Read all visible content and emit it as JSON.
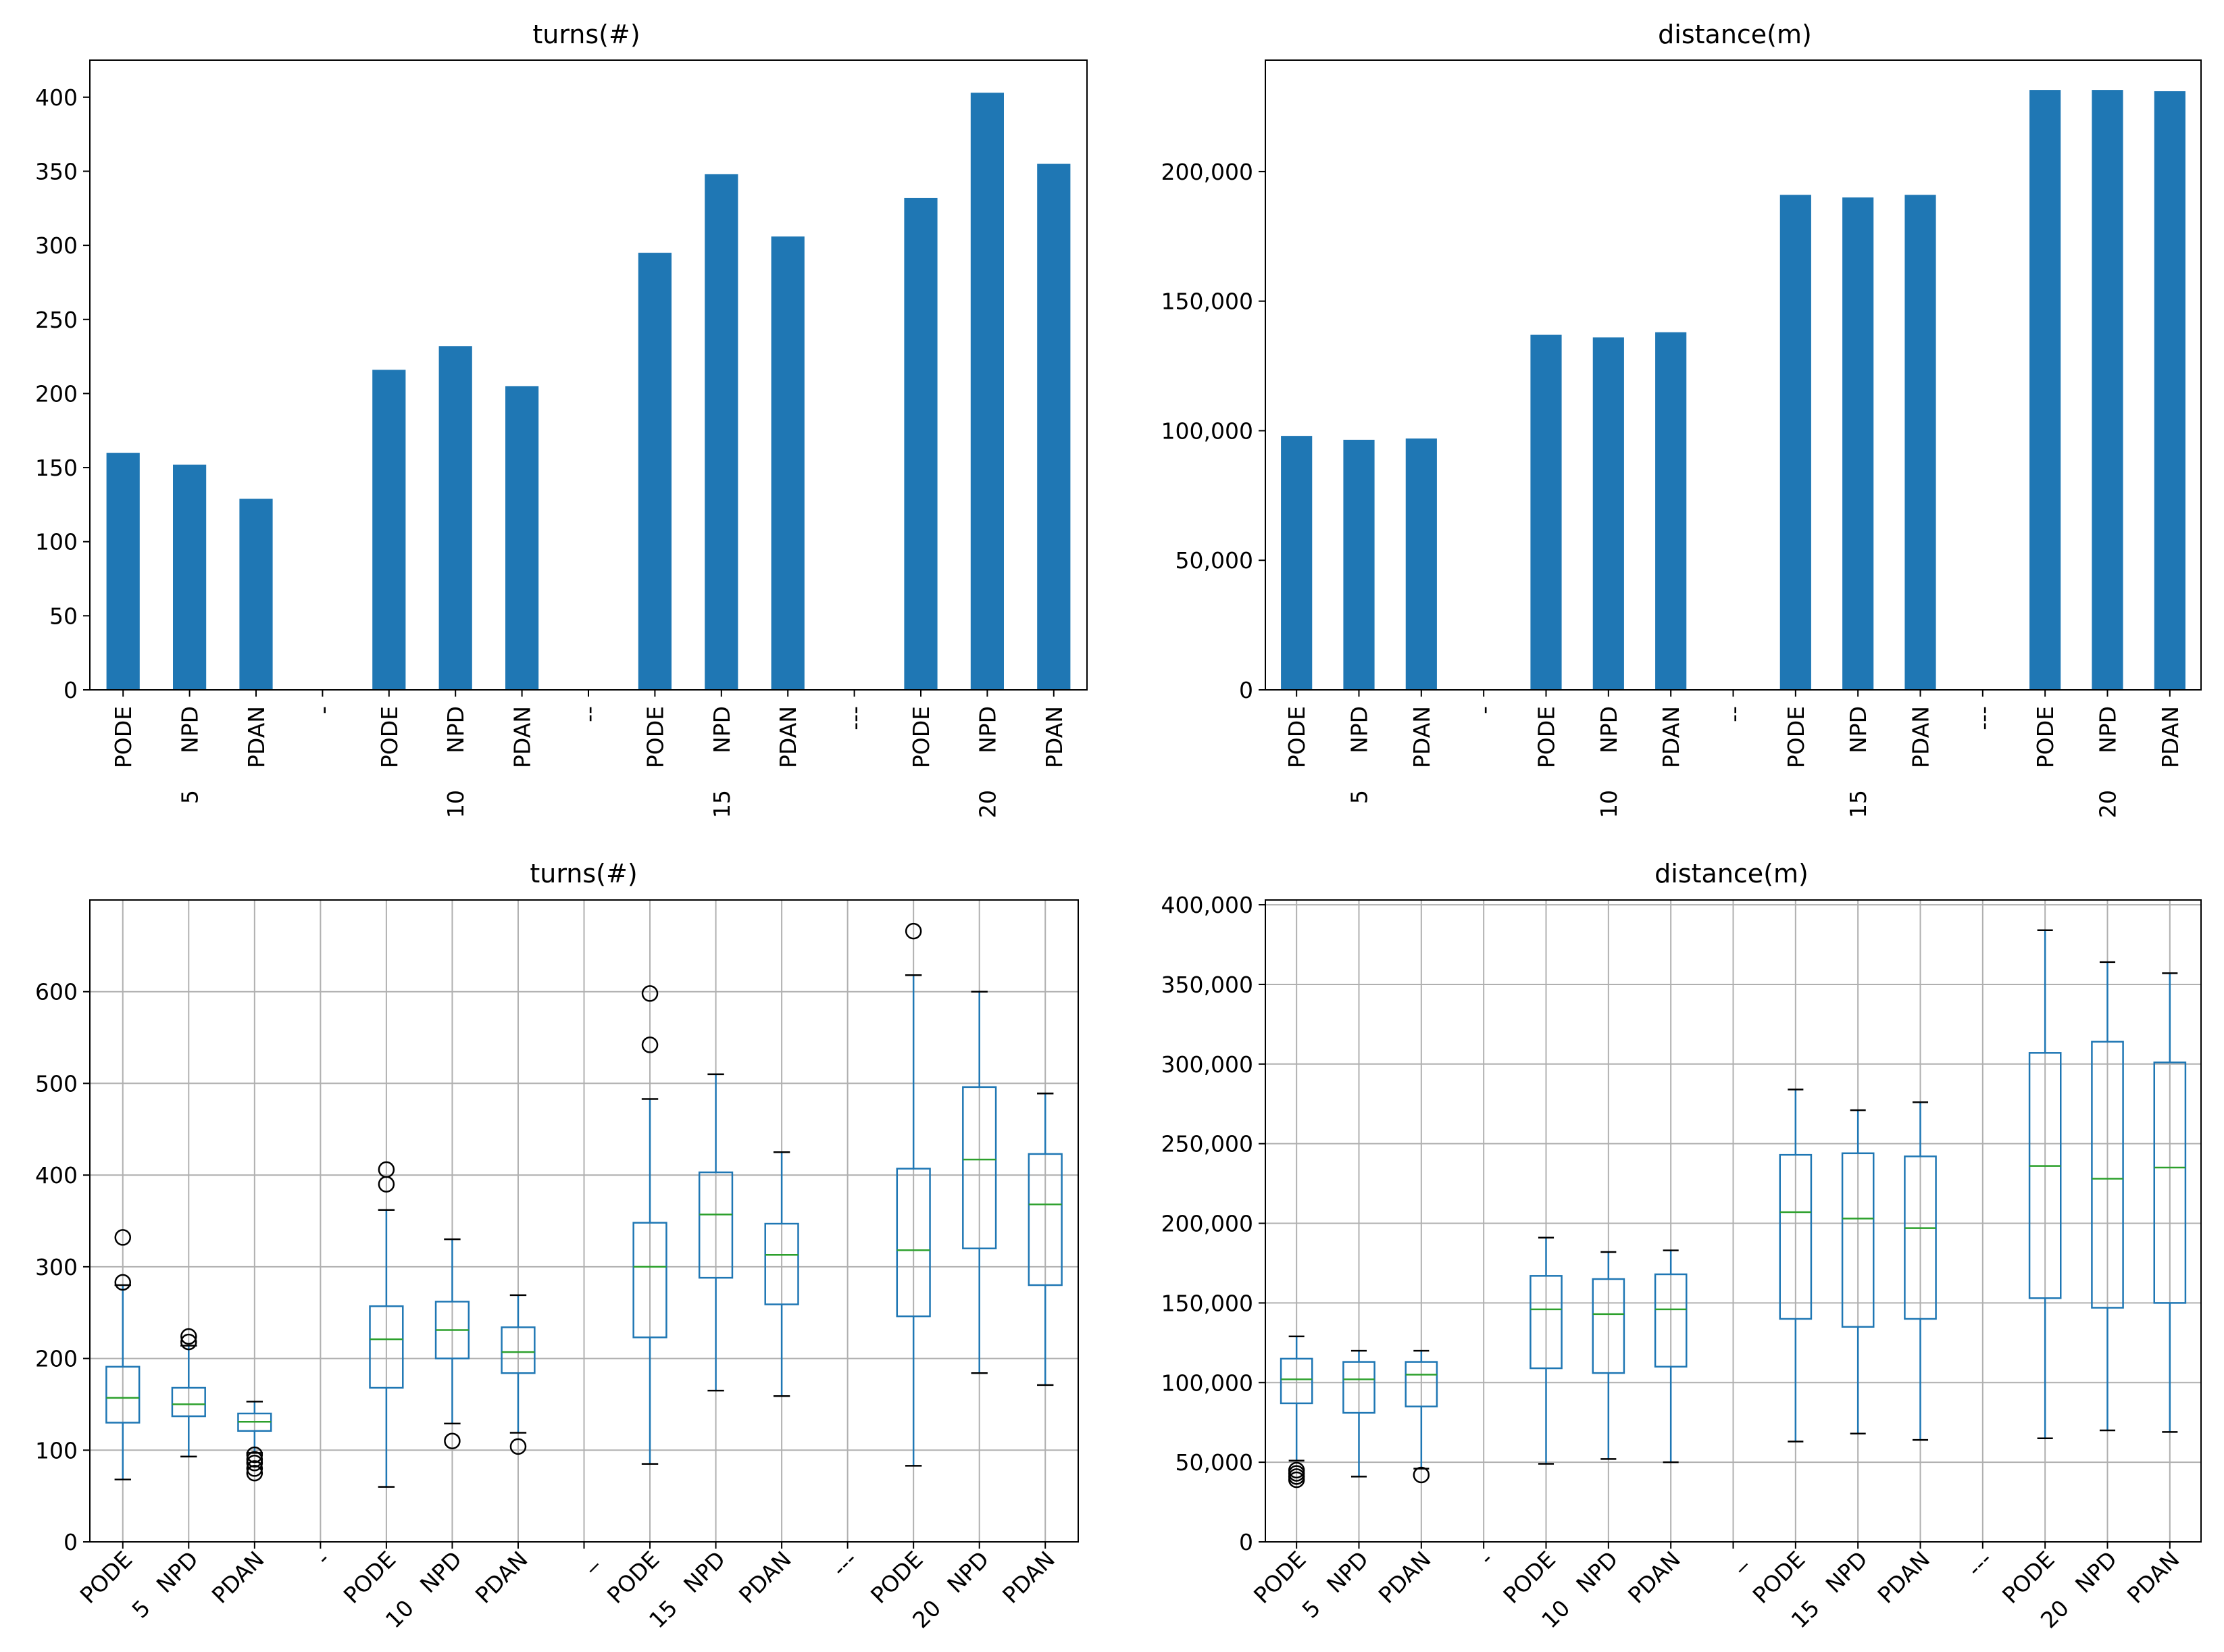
{
  "colors": {
    "bar": "#1f77b4",
    "box": "#1f77b4",
    "median": "#2ca02c",
    "grid": "#b0b0b0",
    "outlier": "#000000"
  },
  "chart_data": [
    {
      "type": "bar",
      "title": "turns(#)",
      "ylim": [
        0,
        425
      ],
      "yticks": [
        0,
        50,
        100,
        150,
        200,
        250,
        300,
        350,
        400
      ],
      "ytick_labels": [
        "0",
        "50",
        "100",
        "150",
        "200",
        "250",
        "300",
        "350",
        "400"
      ],
      "grid": false,
      "categories": [
        {
          "top": "PODE",
          "bottom": ""
        },
        {
          "top": "NPD",
          "bottom": "5"
        },
        {
          "top": "PDAN",
          "bottom": ""
        },
        {
          "top": "-",
          "bottom": ""
        },
        {
          "top": "PODE",
          "bottom": ""
        },
        {
          "top": "NPD",
          "bottom": "10"
        },
        {
          "top": "PDAN",
          "bottom": ""
        },
        {
          "top": "--",
          "bottom": ""
        },
        {
          "top": "PODE",
          "bottom": ""
        },
        {
          "top": "NPD",
          "bottom": "15"
        },
        {
          "top": "PDAN",
          "bottom": ""
        },
        {
          "top": "---",
          "bottom": ""
        },
        {
          "top": "PODE",
          "bottom": ""
        },
        {
          "top": "NPD",
          "bottom": "20"
        },
        {
          "top": "PDAN",
          "bottom": ""
        }
      ],
      "values": [
        160,
        152,
        129,
        0,
        216,
        232,
        205,
        0,
        295,
        348,
        306,
        0,
        332,
        403,
        355
      ]
    },
    {
      "type": "bar",
      "title": "distance(m)",
      "ylim": [
        0,
        243000
      ],
      "yticks": [
        0,
        50000,
        100000,
        150000,
        200000
      ],
      "ytick_labels": [
        "0",
        "50,000",
        "100,000",
        "150,000",
        "200,000"
      ],
      "grid": false,
      "categories": [
        {
          "top": "PODE",
          "bottom": ""
        },
        {
          "top": "NPD",
          "bottom": "5"
        },
        {
          "top": "PDAN",
          "bottom": ""
        },
        {
          "top": "-",
          "bottom": ""
        },
        {
          "top": "PODE",
          "bottom": ""
        },
        {
          "top": "NPD",
          "bottom": "10"
        },
        {
          "top": "PDAN",
          "bottom": ""
        },
        {
          "top": "--",
          "bottom": ""
        },
        {
          "top": "PODE",
          "bottom": ""
        },
        {
          "top": "NPD",
          "bottom": "15"
        },
        {
          "top": "PDAN",
          "bottom": ""
        },
        {
          "top": "---",
          "bottom": ""
        },
        {
          "top": "PODE",
          "bottom": ""
        },
        {
          "top": "NPD",
          "bottom": "20"
        },
        {
          "top": "PDAN",
          "bottom": ""
        }
      ],
      "values": [
        98000,
        96500,
        97000,
        0,
        137000,
        136000,
        138000,
        0,
        191000,
        190000,
        191000,
        0,
        231500,
        231500,
        231000
      ]
    },
    {
      "type": "box",
      "title": "turns(#)",
      "ylim": [
        0,
        700
      ],
      "yticks": [
        0,
        100,
        200,
        300,
        400,
        500,
        600
      ],
      "ytick_labels": [
        "0",
        "100",
        "200",
        "300",
        "400",
        "500",
        "600"
      ],
      "grid": true,
      "categories": [
        {
          "top": "PODE",
          "bottom": ""
        },
        {
          "top": "NPD",
          "bottom": "5"
        },
        {
          "top": "PDAN",
          "bottom": ""
        },
        {
          "top": "-",
          "bottom": ""
        },
        {
          "top": "PODE",
          "bottom": ""
        },
        {
          "top": "NPD",
          "bottom": "10"
        },
        {
          "top": "PDAN",
          "bottom": ""
        },
        {
          "top": "_",
          "bottom": ""
        },
        {
          "top": "PODE",
          "bottom": ""
        },
        {
          "top": "NPD",
          "bottom": "15"
        },
        {
          "top": "PDAN",
          "bottom": ""
        },
        {
          "top": "---",
          "bottom": ""
        },
        {
          "top": "PODE",
          "bottom": ""
        },
        {
          "top": "NPD",
          "bottom": "20"
        },
        {
          "top": "PDAN",
          "bottom": ""
        }
      ],
      "boxes": [
        {
          "whislo": 68,
          "q1": 130,
          "med": 157,
          "q3": 191,
          "whishi": 280,
          "fliers": [
            283,
            332
          ]
        },
        {
          "whislo": 93,
          "q1": 137,
          "med": 150,
          "q3": 168,
          "whishi": 214,
          "fliers": [
            218,
            224
          ]
        },
        {
          "whislo": 97,
          "q1": 121,
          "med": 131,
          "q3": 140,
          "whishi": 153,
          "fliers": [
            75,
            80,
            86,
            90,
            95
          ]
        },
        {
          "whislo": 0,
          "q1": 0,
          "med": 0,
          "q3": 0,
          "whishi": 0,
          "fliers": []
        },
        {
          "whislo": 60,
          "q1": 168,
          "med": 221,
          "q3": 257,
          "whishi": 362,
          "fliers": [
            390,
            406
          ]
        },
        {
          "whislo": 129,
          "q1": 200,
          "med": 231,
          "q3": 262,
          "whishi": 330,
          "fliers": [
            110
          ]
        },
        {
          "whislo": 119,
          "q1": 184,
          "med": 207,
          "q3": 234,
          "whishi": 269,
          "fliers": [
            104
          ]
        },
        {
          "whislo": 0,
          "q1": 0,
          "med": 0,
          "q3": 0,
          "whishi": 0,
          "fliers": []
        },
        {
          "whislo": 85,
          "q1": 223,
          "med": 300,
          "q3": 348,
          "whishi": 483,
          "fliers": [
            542,
            598
          ]
        },
        {
          "whislo": 165,
          "q1": 288,
          "med": 357,
          "q3": 403,
          "whishi": 510,
          "fliers": []
        },
        {
          "whislo": 159,
          "q1": 259,
          "med": 313,
          "q3": 347,
          "whishi": 425,
          "fliers": []
        },
        {
          "whislo": 0,
          "q1": 0,
          "med": 0,
          "q3": 0,
          "whishi": 0,
          "fliers": []
        },
        {
          "whislo": 83,
          "q1": 246,
          "med": 318,
          "q3": 407,
          "whishi": 618,
          "fliers": [
            666
          ]
        },
        {
          "whislo": 184,
          "q1": 320,
          "med": 417,
          "q3": 496,
          "whishi": 600,
          "fliers": []
        },
        {
          "whislo": 171,
          "q1": 280,
          "med": 368,
          "q3": 423,
          "whishi": 489,
          "fliers": []
        }
      ]
    },
    {
      "type": "box",
      "title": "distance(m)",
      "ylim": [
        0,
        403000
      ],
      "yticks": [
        0,
        50000,
        100000,
        150000,
        200000,
        250000,
        300000,
        350000,
        400000
      ],
      "ytick_labels": [
        "0",
        "50,000",
        "100,000",
        "150,000",
        "200,000",
        "250,000",
        "300,000",
        "350,000",
        "400,000"
      ],
      "grid": true,
      "categories": [
        {
          "top": "PODE",
          "bottom": ""
        },
        {
          "top": "NPD",
          "bottom": "5"
        },
        {
          "top": "PDAN",
          "bottom": ""
        },
        {
          "top": "-",
          "bottom": ""
        },
        {
          "top": "PODE",
          "bottom": ""
        },
        {
          "top": "NPD",
          "bottom": "10"
        },
        {
          "top": "PDAN",
          "bottom": ""
        },
        {
          "top": "_",
          "bottom": ""
        },
        {
          "top": "PODE",
          "bottom": ""
        },
        {
          "top": "NPD",
          "bottom": "15"
        },
        {
          "top": "PDAN",
          "bottom": ""
        },
        {
          "top": "---",
          "bottom": ""
        },
        {
          "top": "PODE",
          "bottom": ""
        },
        {
          "top": "NPD",
          "bottom": "20"
        },
        {
          "top": "PDAN",
          "bottom": ""
        }
      ],
      "boxes": [
        {
          "whislo": 51000,
          "q1": 87000,
          "med": 102000,
          "q3": 115000,
          "whishi": 129000,
          "fliers": [
            39000,
            41000,
            43000,
            45000
          ]
        },
        {
          "whislo": 41000,
          "q1": 81000,
          "med": 102000,
          "q3": 113000,
          "whishi": 120000,
          "fliers": []
        },
        {
          "whislo": 46000,
          "q1": 85000,
          "med": 105000,
          "q3": 113000,
          "whishi": 120000,
          "fliers": [
            42000
          ]
        },
        {
          "whislo": 0,
          "q1": 0,
          "med": 0,
          "q3": 0,
          "whishi": 0,
          "fliers": []
        },
        {
          "whislo": 49000,
          "q1": 109000,
          "med": 146000,
          "q3": 167000,
          "whishi": 191000,
          "fliers": []
        },
        {
          "whislo": 52000,
          "q1": 106000,
          "med": 143000,
          "q3": 165000,
          "whishi": 182000,
          "fliers": []
        },
        {
          "whislo": 50000,
          "q1": 110000,
          "med": 146000,
          "q3": 168000,
          "whishi": 183000,
          "fliers": []
        },
        {
          "whislo": 0,
          "q1": 0,
          "med": 0,
          "q3": 0,
          "whishi": 0,
          "fliers": []
        },
        {
          "whislo": 63000,
          "q1": 140000,
          "med": 207000,
          "q3": 243000,
          "whishi": 284000,
          "fliers": []
        },
        {
          "whislo": 68000,
          "q1": 135000,
          "med": 203000,
          "q3": 244000,
          "whishi": 271000,
          "fliers": []
        },
        {
          "whislo": 64000,
          "q1": 140000,
          "med": 197000,
          "q3": 242000,
          "whishi": 276000,
          "fliers": []
        },
        {
          "whislo": 0,
          "q1": 0,
          "med": 0,
          "q3": 0,
          "whishi": 0,
          "fliers": []
        },
        {
          "whislo": 65000,
          "q1": 153000,
          "med": 236000,
          "q3": 307000,
          "whishi": 384000,
          "fliers": []
        },
        {
          "whislo": 70000,
          "q1": 147000,
          "med": 228000,
          "q3": 314000,
          "whishi": 364000,
          "fliers": []
        },
        {
          "whislo": 69000,
          "q1": 150000,
          "med": 235000,
          "q3": 301000,
          "whishi": 357000,
          "fliers": []
        }
      ]
    }
  ]
}
